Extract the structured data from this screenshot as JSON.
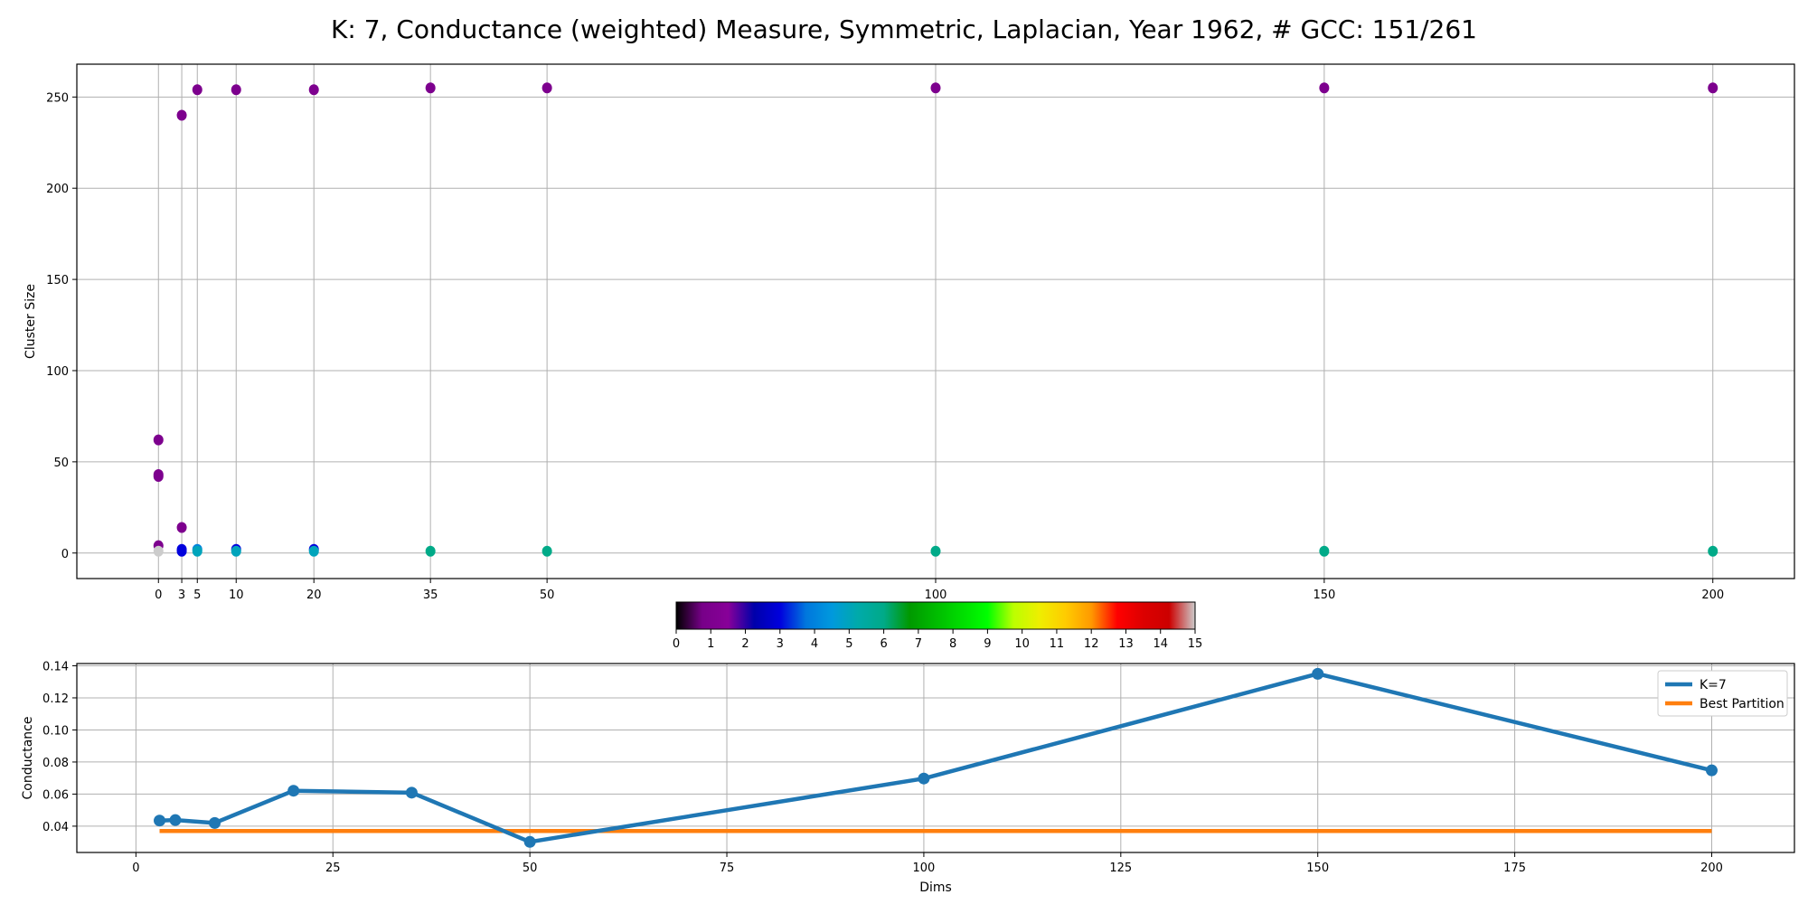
{
  "title": "K: 7, Conductance (weighted) Measure, Symmetric, Laplacian, Year 1962, # GCC: 151/261",
  "chart_data": [
    {
      "type": "scatter",
      "ylabel": "Cluster Size",
      "xlabel": "",
      "x_ticks": [
        0,
        3,
        5,
        10,
        20,
        35,
        50,
        100,
        150,
        200
      ],
      "xlim": [
        -10.5,
        210.5
      ],
      "y_ticks": [
        0,
        50,
        100,
        150,
        200,
        250
      ],
      "ylim": [
        -14,
        268
      ],
      "grid": true,
      "color_scale": "nipy_spectral",
      "points": [
        {
          "x": 0,
          "y": 62,
          "c": 1
        },
        {
          "x": 0,
          "y": 43,
          "c": 1
        },
        {
          "x": 0,
          "y": 42,
          "c": 1
        },
        {
          "x": 0,
          "y": 4,
          "c": 1
        },
        {
          "x": 0,
          "y": 1,
          "c": 15
        },
        {
          "x": 3,
          "y": 240,
          "c": 1
        },
        {
          "x": 3,
          "y": 14,
          "c": 1
        },
        {
          "x": 3,
          "y": 2,
          "c": 3
        },
        {
          "x": 3,
          "y": 1,
          "c": 3
        },
        {
          "x": 5,
          "y": 254,
          "c": 1
        },
        {
          "x": 5,
          "y": 2,
          "c": 4
        },
        {
          "x": 5,
          "y": 1,
          "c": 5
        },
        {
          "x": 10,
          "y": 254,
          "c": 1
        },
        {
          "x": 10,
          "y": 2,
          "c": 3
        },
        {
          "x": 10,
          "y": 1,
          "c": 5
        },
        {
          "x": 20,
          "y": 254,
          "c": 1
        },
        {
          "x": 20,
          "y": 2,
          "c": 3
        },
        {
          "x": 20,
          "y": 1,
          "c": 5
        },
        {
          "x": 35,
          "y": 255,
          "c": 1
        },
        {
          "x": 35,
          "y": 1,
          "c": 6
        },
        {
          "x": 50,
          "y": 255,
          "c": 1
        },
        {
          "x": 50,
          "y": 1,
          "c": 6
        },
        {
          "x": 100,
          "y": 255,
          "c": 1
        },
        {
          "x": 100,
          "y": 1,
          "c": 6
        },
        {
          "x": 150,
          "y": 255,
          "c": 1
        },
        {
          "x": 150,
          "y": 1,
          "c": 6
        },
        {
          "x": 200,
          "y": 255,
          "c": 1
        },
        {
          "x": 200,
          "y": 1,
          "c": 6
        }
      ]
    },
    {
      "type": "colorbar",
      "ticks": [
        0,
        1,
        2,
        3,
        4,
        5,
        6,
        7,
        8,
        9,
        10,
        11,
        12,
        13,
        14,
        15
      ],
      "range": [
        0,
        15
      ],
      "colormap": "nipy_spectral"
    },
    {
      "type": "line",
      "xlabel": "Dims",
      "ylabel": "Conductance",
      "x_ticks": [
        0,
        25,
        50,
        75,
        100,
        125,
        150,
        175,
        200
      ],
      "xlim": [
        -7.5,
        210.5
      ],
      "y_ticks": [
        0.04,
        0.06,
        0.08,
        0.1,
        0.12,
        0.14
      ],
      "y_tick_labels": [
        "0.04",
        "0.06",
        "0.08",
        "0.10",
        "0.12",
        "0.14"
      ],
      "ylim": [
        0.0236,
        0.1414
      ],
      "grid": true,
      "legend_position": "top-right",
      "series": [
        {
          "name": "K=7",
          "color": "#1f77b4",
          "markers": true,
          "x": [
            3,
            5,
            10,
            20,
            35,
            50,
            100,
            150,
            200
          ],
          "y": [
            0.0435,
            0.0438,
            0.042,
            0.0621,
            0.0609,
            0.0302,
            0.0697,
            0.135,
            0.0748
          ]
        },
        {
          "name": "Best Partition",
          "color": "#ff7f0e",
          "markers": false,
          "x": [
            3,
            200
          ],
          "y": [
            0.037,
            0.037
          ]
        }
      ]
    }
  ]
}
